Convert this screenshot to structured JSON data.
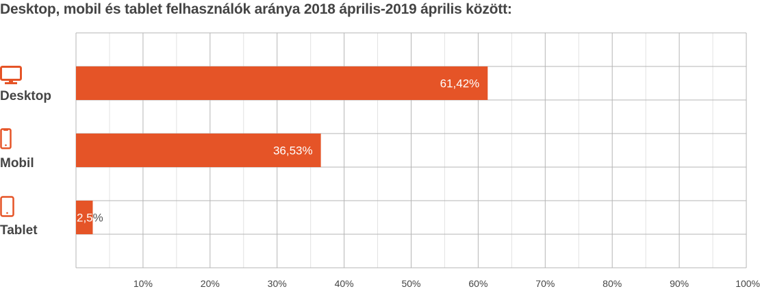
{
  "chart_data": {
    "type": "bar",
    "orientation": "horizontal",
    "title": "Desktop, mobil és tablet felhasználók aránya 2018 április-2019 április között:",
    "categories": [
      "Desktop",
      "Mobil",
      "Tablet"
    ],
    "category_icons": [
      "desktop-monitor-icon",
      "smartphone-icon",
      "tablet-icon"
    ],
    "values": [
      61.42,
      36.53,
      2.5
    ],
    "data_labels": [
      "61,42%",
      "36,53%",
      "2,5%"
    ],
    "xlim": [
      0,
      100
    ],
    "x_ticks": [
      10,
      20,
      30,
      40,
      50,
      60,
      70,
      80,
      90,
      100
    ],
    "x_tick_labels": [
      "10%",
      "20%",
      "30%",
      "40%",
      "50%",
      "60%",
      "70%",
      "80%",
      "90%",
      "100%"
    ],
    "grid": true,
    "colors": {
      "bar": "#e55427",
      "icon": "#e55427",
      "text": "#444444",
      "grid_major": "#b5b5b5",
      "grid_minor": "#e2e2e2"
    }
  }
}
